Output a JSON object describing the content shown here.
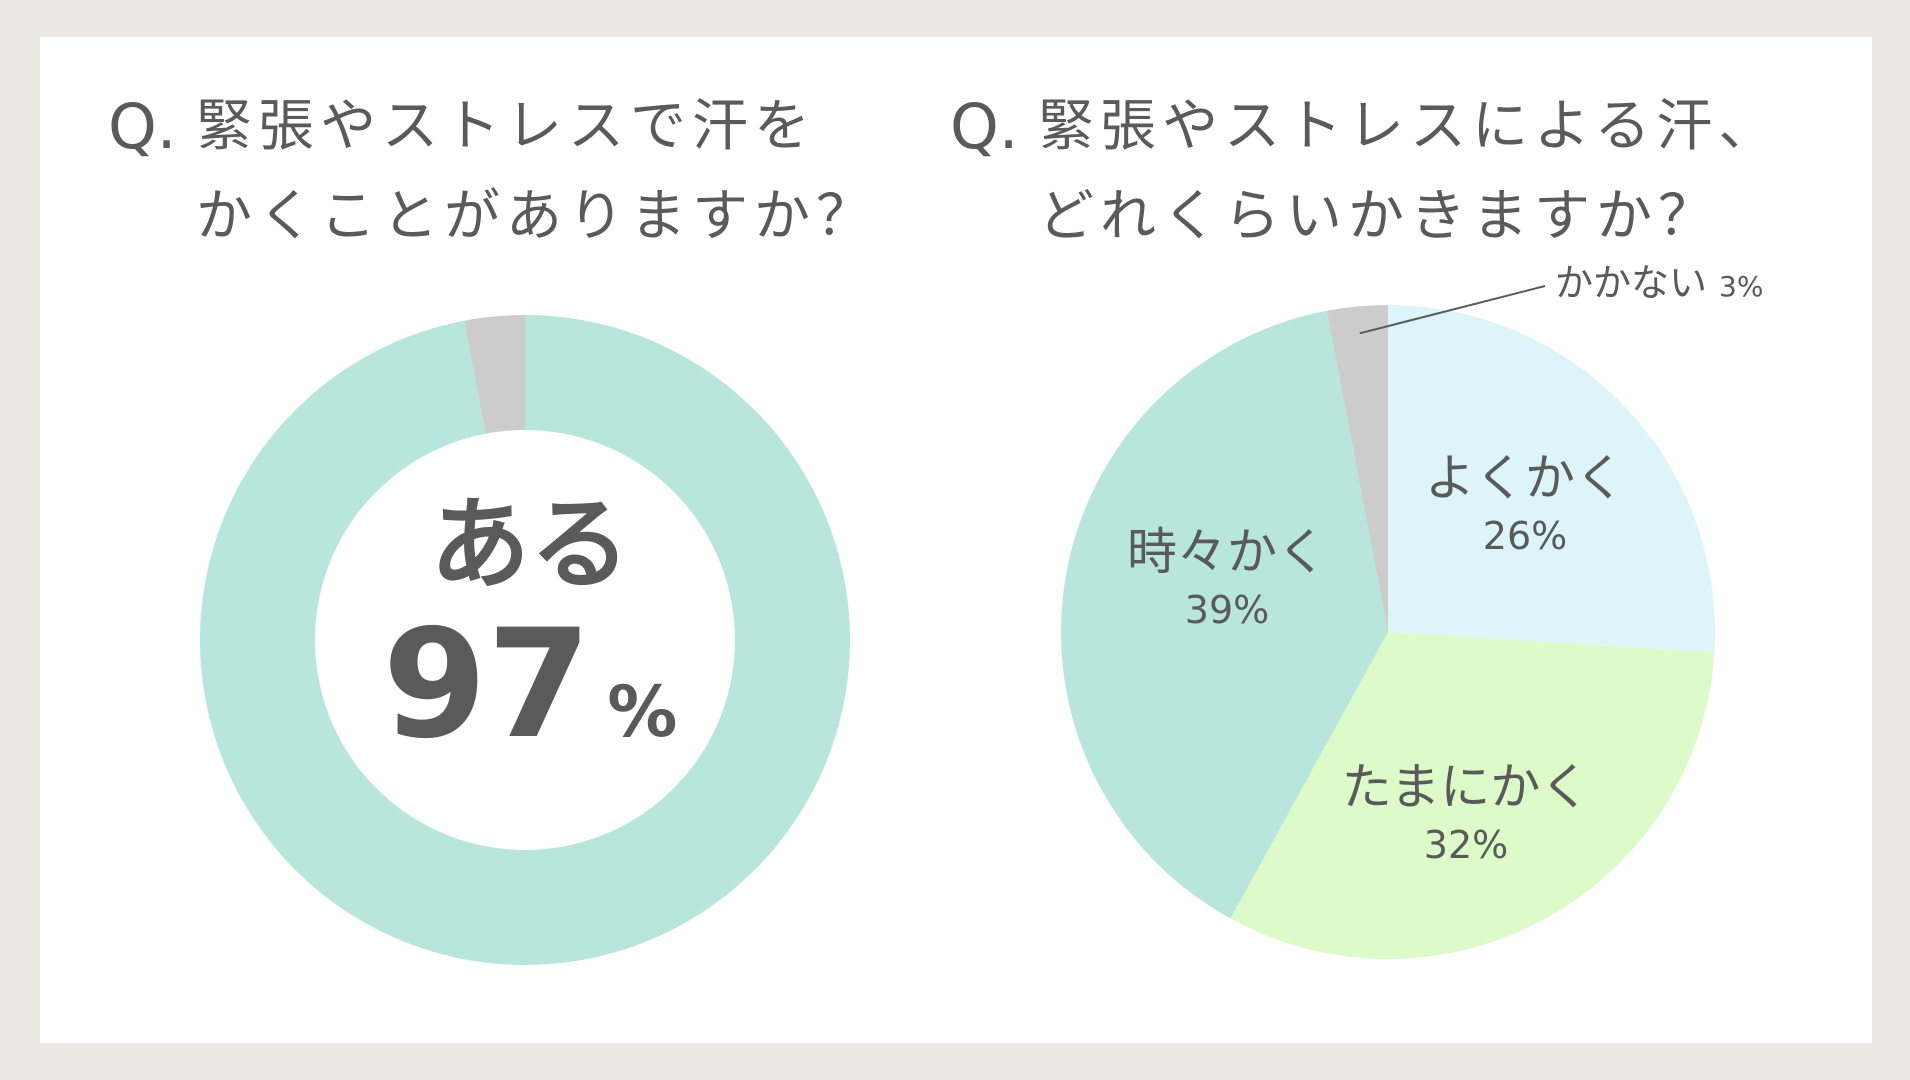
{
  "left": {
    "q_mark": "Q.",
    "q_line1": "緊張やストレスで汗を",
    "q_line2": "かくことがありますか？",
    "center_label": "ある",
    "center_value": "97",
    "center_unit": "%"
  },
  "right": {
    "q_mark": "Q.",
    "q_line1": "緊張やストレスによる汗、",
    "q_line2": "どれくらいかきますか？"
  },
  "chart_data": [
    {
      "type": "pie",
      "variant": "donut",
      "title": "Q. 緊張やストレスで汗をかくことがありますか？",
      "categories": [
        "ある",
        ""
      ],
      "values": [
        97,
        3
      ],
      "colors": [
        "#b8e5dc",
        "#cccccc"
      ]
    },
    {
      "type": "pie",
      "title": "Q. 緊張やストレスによる汗、どれくらいかきますか？",
      "categories": [
        "よくかく",
        "たまにかく",
        "時々かく",
        "かかない"
      ],
      "values": [
        26,
        32,
        39,
        3
      ],
      "labels": [
        "26%",
        "32%",
        "39%",
        "3%"
      ],
      "colors": [
        "#ddf4f8",
        "#dcfbc8",
        "#b8e5dc",
        "#cccccc"
      ]
    }
  ]
}
